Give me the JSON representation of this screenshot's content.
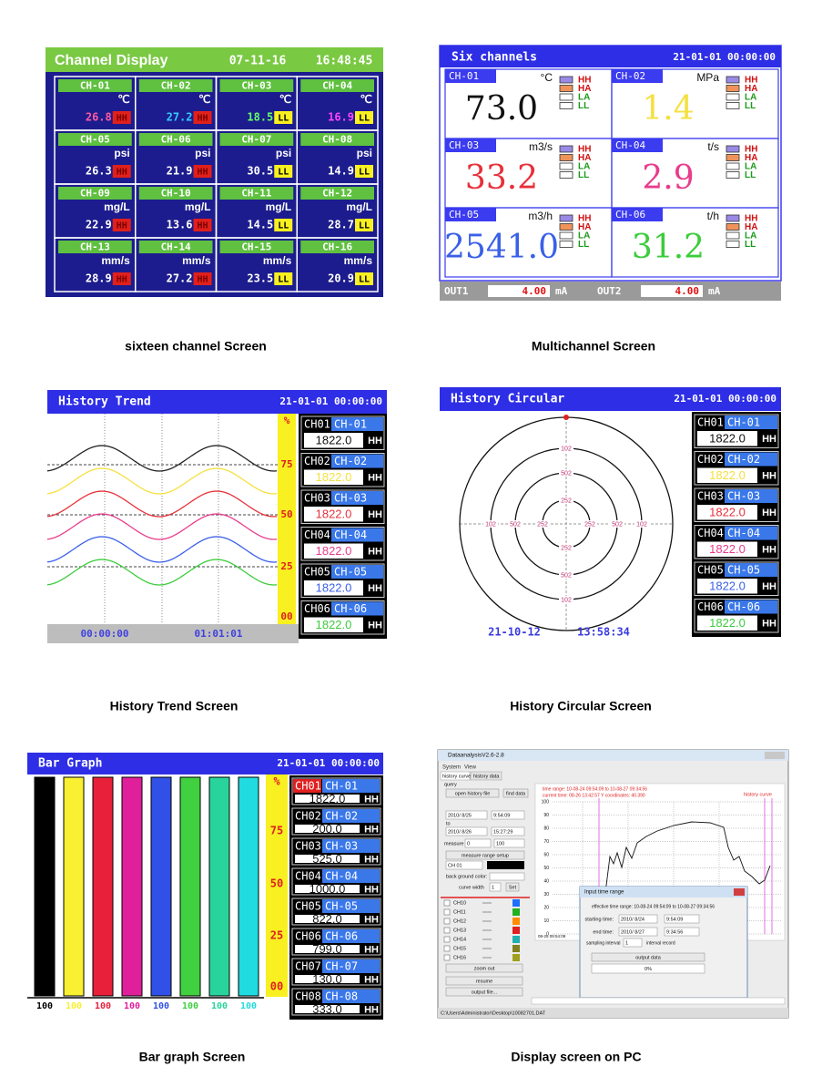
{
  "captions": [
    "sixteen channel Screen",
    "Multichannel Screen",
    "History Trend Screen",
    "History Circular Screen",
    "Bar graph Screen",
    "Display screen on PC"
  ],
  "sixteen": {
    "title": "Channel Display",
    "date": "07-11-16",
    "time": "16:48:45",
    "channels": [
      {
        "name": "CH-01",
        "unit": "℃",
        "value": "26.8",
        "alarm": "HH",
        "color": "#ff5aa0"
      },
      {
        "name": "CH-02",
        "unit": "℃",
        "value": "27.2",
        "alarm": "HH",
        "color": "#33ccff"
      },
      {
        "name": "CH-03",
        "unit": "℃",
        "value": "18.5",
        "alarm": "LL",
        "color": "#66ff66"
      },
      {
        "name": "CH-04",
        "unit": "℃",
        "value": "16.9",
        "alarm": "LL",
        "color": "#ff44ff"
      },
      {
        "name": "CH-05",
        "unit": "psi",
        "value": "26.3",
        "alarm": "HH",
        "color": "#ffffff"
      },
      {
        "name": "CH-06",
        "unit": "psi",
        "value": "21.9",
        "alarm": "HH",
        "color": "#ffffff"
      },
      {
        "name": "CH-07",
        "unit": "psi",
        "value": "30.5",
        "alarm": "LL",
        "color": "#ffffff"
      },
      {
        "name": "CH-08",
        "unit": "psi",
        "value": "14.9",
        "alarm": "LL",
        "color": "#ffffff"
      },
      {
        "name": "CH-09",
        "unit": "mg/L",
        "value": "22.9",
        "alarm": "HH",
        "color": "#ffffff"
      },
      {
        "name": "CH-10",
        "unit": "mg/L",
        "value": "13.6",
        "alarm": "HH",
        "color": "#ffffff"
      },
      {
        "name": "CH-11",
        "unit": "mg/L",
        "value": "14.5",
        "alarm": "LL",
        "color": "#ffffff"
      },
      {
        "name": "CH-12",
        "unit": "mg/L",
        "value": "28.7",
        "alarm": "LL",
        "color": "#ffffff"
      },
      {
        "name": "CH-13",
        "unit": "mm/s",
        "value": "28.9",
        "alarm": "HH",
        "color": "#ffffff"
      },
      {
        "name": "CH-14",
        "unit": "mm/s",
        "value": "27.2",
        "alarm": "HH",
        "color": "#ffffff"
      },
      {
        "name": "CH-15",
        "unit": "mm/s",
        "value": "23.5",
        "alarm": "LL",
        "color": "#ffffff"
      },
      {
        "name": "CH-16",
        "unit": "mm/s",
        "value": "20.9",
        "alarm": "LL",
        "color": "#ffffff"
      }
    ]
  },
  "multi": {
    "title": "Six  channels",
    "datetime": "21-01-01 00:00:00",
    "alarm_labels": [
      "HH",
      "HA",
      "LA",
      "LL"
    ],
    "channels": [
      {
        "name": "CH-01",
        "unit": "°C",
        "value": "73.0",
        "color": "#111111"
      },
      {
        "name": "CH-02",
        "unit": "MPa",
        "value": "1.4",
        "color": "#f5e040"
      },
      {
        "name": "CH-03",
        "unit": "m3/s",
        "value": "33.2",
        "color": "#e8303a"
      },
      {
        "name": "CH-04",
        "unit": "t/s",
        "value": "2.9",
        "color": "#e83c8c"
      },
      {
        "name": "CH-05",
        "unit": "m3/h",
        "value": "2541.0",
        "color": "#3a60e8"
      },
      {
        "name": "CH-06",
        "unit": "t/h",
        "value": "31.2",
        "color": "#3ccc3c"
      }
    ],
    "outputs": [
      {
        "name": "OUT1",
        "value": "4.00",
        "unit": "mA"
      },
      {
        "name": "OUT2",
        "value": "4.00",
        "unit": "mA"
      }
    ]
  },
  "trend": {
    "title": "History Trend",
    "datetime": "21-01-01 00:00:00",
    "scale": [
      "%",
      "75",
      "50",
      "25",
      "00"
    ],
    "times": [
      "00:00:00",
      "01:01:01"
    ],
    "channels": [
      {
        "id": "CH01",
        "name": "CH-01",
        "value": "1822.0",
        "alarm": "HH",
        "color": "#111111"
      },
      {
        "id": "CH02",
        "name": "CH-02",
        "value": "1822.0",
        "alarm": "HH",
        "color": "#f5e040"
      },
      {
        "id": "CH03",
        "name": "CH-03",
        "value": "1822.0",
        "alarm": "HH",
        "color": "#e8303a"
      },
      {
        "id": "CH04",
        "name": "CH-04",
        "value": "1822.0",
        "alarm": "HH",
        "color": "#e83c8c"
      },
      {
        "id": "CH05",
        "name": "CH-05",
        "value": "1822.0",
        "alarm": "HH",
        "color": "#3a60e8"
      },
      {
        "id": "CH06",
        "name": "CH-06",
        "value": "1822.0",
        "alarm": "HH",
        "color": "#3ccc3c"
      }
    ]
  },
  "circular": {
    "title": "History Circular",
    "datetime": "21-01-01 00:00:00",
    "ring_labels": [
      "102",
      "502",
      "252"
    ],
    "date": "21-10-12",
    "time": "13:58:34",
    "channels": [
      {
        "id": "CH01",
        "name": "CH-01",
        "value": "1822.0",
        "alarm": "HH",
        "color": "#111111"
      },
      {
        "id": "CH02",
        "name": "CH-02",
        "value": "1822.0",
        "alarm": "HH",
        "color": "#f5e040"
      },
      {
        "id": "CH03",
        "name": "CH-03",
        "value": "1822.0",
        "alarm": "HH",
        "color": "#e8303a"
      },
      {
        "id": "CH04",
        "name": "CH-04",
        "value": "1822.0",
        "alarm": "HH",
        "color": "#e83c8c"
      },
      {
        "id": "CH05",
        "name": "CH-05",
        "value": "1822.0",
        "alarm": "HH",
        "color": "#3a60e8"
      },
      {
        "id": "CH06",
        "name": "CH-06",
        "value": "1822.0",
        "alarm": "HH",
        "color": "#3ccc3c"
      }
    ]
  },
  "bar": {
    "title": "Bar Graph",
    "datetime": "21-01-01 00:00:00",
    "scale": [
      "%",
      "75",
      "50",
      "25",
      "00"
    ],
    "bars": [
      {
        "label": "100",
        "color": "#000000"
      },
      {
        "label": "100",
        "color": "#f8f030"
      },
      {
        "label": "100",
        "color": "#e8203a"
      },
      {
        "label": "100",
        "color": "#e0209a"
      },
      {
        "label": "100",
        "color": "#3050e8"
      },
      {
        "label": "100",
        "color": "#40d040"
      },
      {
        "label": "100",
        "color": "#28d49c"
      },
      {
        "label": "100",
        "color": "#20dce0"
      }
    ],
    "channels": [
      {
        "id": "CH01",
        "name": "CH-01",
        "value": "1822.0",
        "alarm": "HH",
        "color": "#111111"
      },
      {
        "id": "CH02",
        "name": "CH-02",
        "value": "200.0",
        "alarm": "HH",
        "color": "#111111"
      },
      {
        "id": "CH03",
        "name": "CH-03",
        "value": "525.0",
        "alarm": "HH",
        "color": "#111111"
      },
      {
        "id": "CH04",
        "name": "CH-04",
        "value": "1000.0",
        "alarm": "HH",
        "color": "#111111"
      },
      {
        "id": "CH05",
        "name": "CH-05",
        "value": "822.0",
        "alarm": "HH",
        "color": "#111111"
      },
      {
        "id": "CH06",
        "name": "CH-06",
        "value": "799.0",
        "alarm": "HH",
        "color": "#111111"
      },
      {
        "id": "CH07",
        "name": "CH-07",
        "value": "130.0",
        "alarm": "HH",
        "color": "#111111"
      },
      {
        "id": "CH08",
        "name": "CH-08",
        "value": "333.0",
        "alarm": "HH",
        "color": "#111111"
      }
    ]
  },
  "pc": {
    "title": "DataanalysisV2.6-2.8",
    "menu": [
      "System",
      "View"
    ],
    "tabs": [
      "history curve",
      "history data"
    ],
    "query": "query",
    "buttons": [
      "open history file",
      "find data"
    ],
    "from_date": "2010/ 8/25",
    "from_time": "9:54:09",
    "to": "to",
    "to_date": "2010/ 8/26",
    "to_time": "15:27:29",
    "measure": "measure",
    "measure_min": "0",
    "measure_max": "100",
    "range_setup": "measure range setup",
    "channel": "CH 01",
    "bg_color": "back ground color:",
    "curve_width": "curve width",
    "width_value": "1",
    "set": "Set",
    "channel_list": [
      "CH10",
      "CH11",
      "CH12",
      "CH13",
      "CH14",
      "CH15",
      "CH16"
    ],
    "actions": [
      "zoom out",
      "resume",
      "output file..."
    ],
    "info": [
      "time range: 10-08-24 09:54:09 to 10-08-27 09:34:56",
      "current time: 08-26 13:42:57  Y coordinates: 40.390"
    ],
    "curve_label": "history curve",
    "yticks": [
      "100",
      "90",
      "80",
      "70",
      "60",
      "50",
      "40",
      "30",
      "20",
      "10",
      "0"
    ],
    "x_start": "08-25 09:54:09",
    "dialog": {
      "title": "Input time range",
      "effective": "effective time range: 10-08-24 09:54:09 to 10-08-27 09:34:56",
      "start_label": "starting time:",
      "start_date": "2010/ 8/24",
      "start_time": "9:54:09",
      "end_label": "end time:",
      "end_date": "2010/ 8/27",
      "end_time": "9:34:56",
      "interval_label": "sampling interval",
      "interval": "1",
      "interval_unit": "interval record",
      "output": "output data",
      "progress": "0%"
    },
    "status": "C:\\Users\\Administrator\\Desktop\\10082701.DAT"
  }
}
